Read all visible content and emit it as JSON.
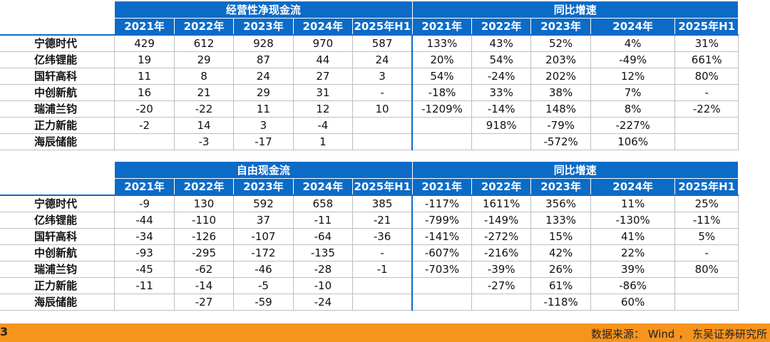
{
  "tables": [
    {
      "group_left": "经营性净现金流",
      "group_right": "同比增速",
      "years_left": [
        "2021年",
        "2022年",
        "2023年",
        "2024年",
        "2025年H1"
      ],
      "years_right": [
        "2021年",
        "2022年",
        "2023年",
        "2024年",
        "2025年H1"
      ],
      "rows": [
        {
          "company": "宁德时代",
          "values": [
            "429",
            "612",
            "928",
            "970",
            "587"
          ],
          "growth": [
            "133%",
            "43%",
            "52%",
            "4%",
            "31%"
          ]
        },
        {
          "company": "亿纬锂能",
          "values": [
            "19",
            "29",
            "87",
            "44",
            "24"
          ],
          "growth": [
            "20%",
            "54%",
            "203%",
            "-49%",
            "661%"
          ]
        },
        {
          "company": "国轩高科",
          "values": [
            "11",
            "8",
            "24",
            "27",
            "3"
          ],
          "growth": [
            "54%",
            "-24%",
            "202%",
            "12%",
            "80%"
          ]
        },
        {
          "company": "中创新航",
          "values": [
            "16",
            "21",
            "29",
            "31",
            "-"
          ],
          "growth": [
            "-18%",
            "33%",
            "38%",
            "7%",
            "-"
          ]
        },
        {
          "company": "瑞浦兰钧",
          "values": [
            "-20",
            "-22",
            "11",
            "12",
            "10"
          ],
          "growth": [
            "-1209%",
            "-14%",
            "148%",
            "8%",
            "-22%"
          ]
        },
        {
          "company": "正力新能",
          "values": [
            "-2",
            "14",
            "3",
            "-4",
            ""
          ],
          "growth": [
            "",
            "918%",
            "-79%",
            "-227%",
            ""
          ]
        },
        {
          "company": "海辰储能",
          "values": [
            "",
            "-3",
            "-17",
            "1",
            ""
          ],
          "growth": [
            "",
            "",
            "-572%",
            "106%",
            ""
          ]
        }
      ]
    },
    {
      "group_left": "自由现金流",
      "group_right": "同比增速",
      "years_left": [
        "2021年",
        "2022年",
        "2023年",
        "2024年",
        "2025年H1"
      ],
      "years_right": [
        "2021年",
        "2022年",
        "2023年",
        "2024年",
        "2025年H1"
      ],
      "rows": [
        {
          "company": "宁德时代",
          "values": [
            "-9",
            "130",
            "592",
            "658",
            "385"
          ],
          "growth": [
            "-117%",
            "1611%",
            "356%",
            "11%",
            "25%"
          ]
        },
        {
          "company": "亿纬锂能",
          "values": [
            "-44",
            "-110",
            "37",
            "-11",
            "-21"
          ],
          "growth": [
            "-799%",
            "-149%",
            "133%",
            "-130%",
            "-11%"
          ]
        },
        {
          "company": "国轩高科",
          "values": [
            "-34",
            "-126",
            "-107",
            "-64",
            "-36"
          ],
          "growth": [
            "-141%",
            "-272%",
            "15%",
            "41%",
            "5%"
          ]
        },
        {
          "company": "中创新航",
          "values": [
            "-93",
            "-295",
            "-172",
            "-135",
            "-"
          ],
          "growth": [
            "-607%",
            "-216%",
            "42%",
            "22%",
            "-"
          ]
        },
        {
          "company": "瑞浦兰钧",
          "values": [
            "-45",
            "-62",
            "-46",
            "-28",
            "-1"
          ],
          "growth": [
            "-703%",
            "-39%",
            "26%",
            "39%",
            "80%"
          ]
        },
        {
          "company": "正力新能",
          "values": [
            "-11",
            "-14",
            "-5",
            "-10",
            ""
          ],
          "growth": [
            "",
            "-27%",
            "61%",
            "-86%",
            ""
          ]
        },
        {
          "company": "海辰储能",
          "values": [
            "",
            "-27",
            "-59",
            "-24",
            ""
          ],
          "growth": [
            "",
            "",
            "-118%",
            "60%",
            ""
          ]
        }
      ]
    }
  ],
  "footer": {
    "mark": "3",
    "source": "数据来源： Wind ， 东吴证券研究所"
  },
  "colors": {
    "header_blue": "#0b6bc7",
    "footer_orange": "#f7941e"
  }
}
